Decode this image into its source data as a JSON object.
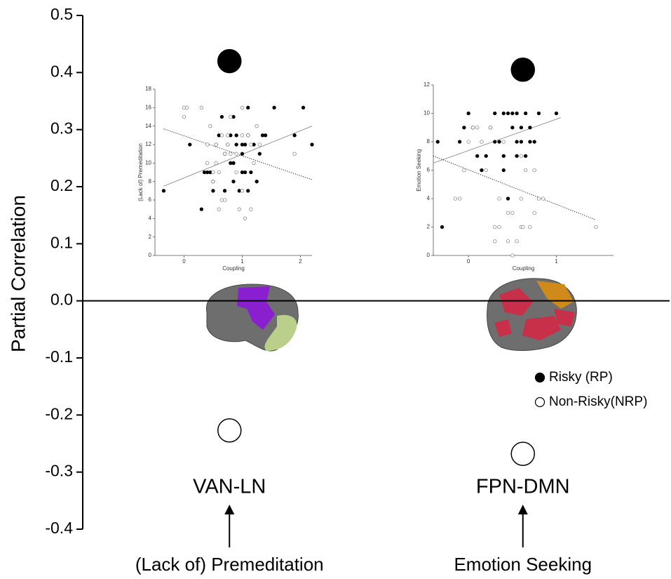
{
  "chart_data": [
    {
      "type": "dot",
      "ylabel": "Partial Correlation",
      "categories": [
        "VAN-LN",
        "FPN-DMN"
      ],
      "category_descriptions": [
        "(Lack of) Premeditation",
        "Emotion Seeking"
      ],
      "series": [
        {
          "name": "Risky (RP)",
          "color": "#000000",
          "values": [
            0.42,
            0.405
          ]
        },
        {
          "name": "Non-Risky(NRP)",
          "color": "#ffffff",
          "values": [
            -0.227,
            -0.268
          ]
        }
      ],
      "ylim": [
        -0.4,
        0.5
      ],
      "yticks": [
        -0.4,
        -0.3,
        -0.2,
        -0.1,
        {
          "value": 0,
          "label": "0.0"
        },
        0.1,
        0.2,
        0.3,
        0.4,
        0.5
      ],
      "legend": "lower-right"
    },
    {
      "type": "scatter",
      "xlabel": "Coupling",
      "ylabel": "(Lack of) Premeditation",
      "xlim": [
        -0.5,
        2.2
      ],
      "ylim": [
        0,
        18
      ],
      "xticks": [
        0,
        1,
        2
      ],
      "yticks": [
        0,
        2,
        4,
        6,
        8,
        10,
        12,
        14,
        16,
        18
      ],
      "series": [
        {
          "color": "#000000",
          "filled": true,
          "x": [
            -0.35,
            0.1,
            0.3,
            0.35,
            0.4,
            0.5,
            0.5,
            0.55,
            0.6,
            0.65,
            0.7,
            0.7,
            0.75,
            0.8,
            0.8,
            0.85,
            0.85,
            0.9,
            0.9,
            0.95,
            1,
            1,
            1.05,
            1.05,
            1.1,
            1.1,
            1.15,
            1.2,
            1.25,
            1.3,
            1.35,
            1.4,
            1.55,
            1.9,
            2.05,
            2.2,
            0.45,
            0.85,
            1.1,
            1.0
          ],
          "values": [
            7,
            12,
            5,
            9,
            9,
            8,
            7,
            12,
            13,
            15,
            7,
            11,
            12,
            13,
            10,
            15,
            8,
            12,
            13,
            7,
            11,
            9,
            9,
            12,
            13,
            7,
            9,
            12,
            8,
            11,
            13,
            13,
            16,
            13,
            16,
            12,
            9,
            10,
            16,
            12
          ]
        },
        {
          "color": "#777777",
          "filled": false,
          "x": [
            0,
            0.05,
            0,
            0.3,
            0.4,
            0.4,
            0.45,
            0.5,
            0.5,
            0.55,
            0.6,
            0.6,
            0.65,
            0.7,
            0.7,
            0.75,
            0.75,
            0.8,
            0.8,
            0.9,
            0.95,
            1,
            1,
            1.05,
            1.1,
            1.15,
            1.15,
            1.2,
            1.25,
            1.3,
            1.9,
            0.65,
            0.9,
            1.0,
            0.55
          ],
          "values": [
            16,
            16,
            15,
            16,
            12,
            10,
            14,
            9,
            8,
            12,
            5,
            9,
            6,
            6,
            11,
            13,
            12,
            11,
            15,
            11,
            5,
            16,
            13,
            4,
            13,
            12,
            5,
            10,
            14,
            12,
            11,
            13,
            9,
            7,
            10
          ]
        }
      ],
      "fit_lines": [
        {
          "style": "solid",
          "x": [
            -0.35,
            2.2
          ],
          "values": [
            7.5,
            14
          ]
        },
        {
          "style": "dotted",
          "x": [
            -0.35,
            2.2
          ],
          "values": [
            13.7,
            8.2
          ]
        }
      ]
    },
    {
      "type": "scatter",
      "xlabel": "Coupling",
      "ylabel": "Emotion Seeking",
      "xlim": [
        -0.4,
        1.65
      ],
      "ylim": [
        0,
        12
      ],
      "xticks": [
        0,
        1
      ],
      "yticks": [
        0,
        2,
        4,
        6,
        8,
        10,
        12
      ],
      "series": [
        {
          "color": "#000000",
          "filled": true,
          "x": [
            -0.35,
            -0.3,
            -0.05,
            -0.1,
            0,
            0.05,
            0.1,
            0.15,
            0.2,
            0.25,
            0.3,
            0.35,
            0.4,
            0.4,
            0.45,
            0.45,
            0.5,
            0.5,
            0.55,
            0.55,
            0.6,
            0.6,
            0.65,
            0.7,
            0.75,
            0.8,
            1.0,
            0.65,
            0.4,
            0.3,
            0.55,
            0.7
          ],
          "values": [
            8,
            2,
            9,
            8,
            10,
            9,
            7,
            6,
            7,
            9,
            10,
            8,
            10,
            7,
            4,
            10,
            9,
            10,
            7,
            10,
            8,
            9,
            10,
            8,
            8,
            10,
            10,
            7,
            6,
            8,
            8,
            9
          ]
        },
        {
          "color": "#777777",
          "filled": false,
          "x": [
            -0.15,
            -0.1,
            -0.05,
            0,
            0.05,
            0.1,
            0.15,
            0.2,
            0.25,
            0.3,
            0.35,
            0.4,
            0.45,
            0.5,
            0.45,
            0.3,
            0.55,
            0.6,
            0.6,
            0.65,
            0.7,
            0.75,
            0.8,
            0.75,
            0.85,
            1.45,
            0.5,
            0.35,
            0.6,
            0.62
          ],
          "values": [
            4,
            4,
            6,
            8,
            9,
            9,
            8,
            6,
            9,
            2,
            2,
            8,
            3,
            3,
            1,
            1,
            1,
            7,
            2,
            6,
            2,
            3,
            4,
            6,
            4,
            2,
            0,
            4,
            4,
            2
          ]
        }
      ],
      "fit_lines": [
        {
          "style": "solid",
          "x": [
            -0.4,
            1.05
          ],
          "values": [
            6.5,
            9.7
          ]
        },
        {
          "style": "dotted",
          "x": [
            -0.4,
            1.45
          ],
          "values": [
            7,
            2.5
          ]
        }
      ]
    }
  ]
}
